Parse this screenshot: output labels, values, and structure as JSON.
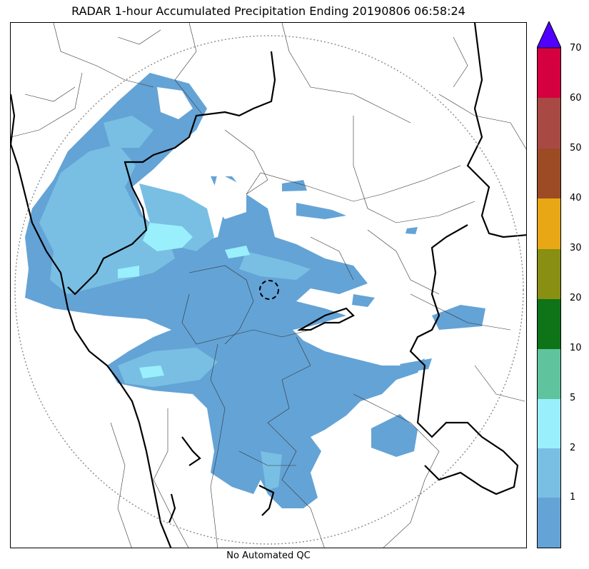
{
  "title": "RADAR 1-hour Accumulated Precipitation Ending 20190806 06:58:24",
  "footer": "No Automated QC",
  "colorbar": {
    "labels": [
      "1",
      "2",
      "5",
      "10",
      "20",
      "30",
      "40",
      "50",
      "60",
      "70"
    ],
    "colors": [
      "#64a3d6",
      "#79bfe3",
      "#9aeffc",
      "#5fc49e",
      "#0f7318",
      "#888f12",
      "#e8a715",
      "#9c4b25",
      "#a94943",
      "#d4003f"
    ],
    "extend_color": "#5100ff"
  },
  "legend": {
    "lowest_color": "#64a3d6",
    "second_color": "#79bfe3",
    "third_color": "#9aeffc"
  }
}
